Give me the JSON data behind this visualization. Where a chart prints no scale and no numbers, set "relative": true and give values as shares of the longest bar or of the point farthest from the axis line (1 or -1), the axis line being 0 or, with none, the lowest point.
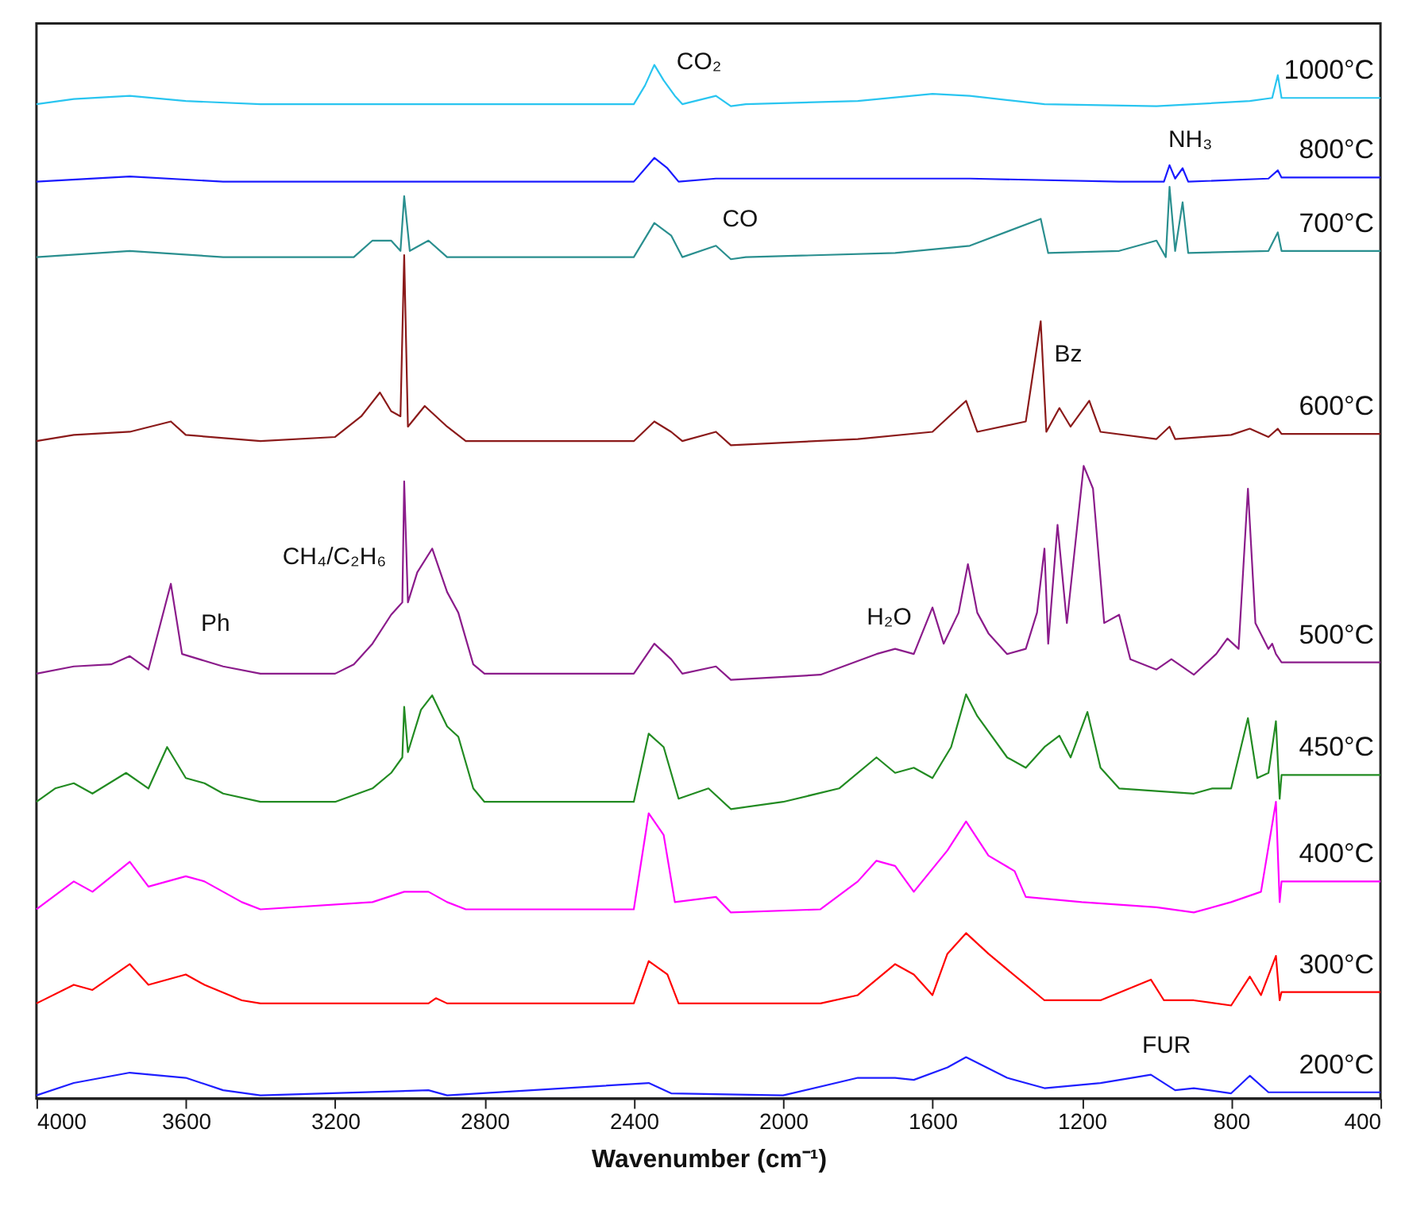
{
  "chart_data": {
    "type": "line",
    "relative": true,
    "xlabel": "Wavenumber (cm⁻¹)",
    "xlim": [
      4000,
      400
    ],
    "xticks": [
      4000,
      3600,
      3200,
      2800,
      2400,
      2000,
      1600,
      1200,
      800,
      400
    ],
    "tick_labels": "x",
    "grid": false,
    "legend": false,
    "series": [
      {
        "name": "1000°C",
        "color": "#29c5f0",
        "x": [
          4000,
          3900,
          3750,
          3600,
          3400,
          2400,
          2370,
          2345,
          2320,
          2290,
          2270,
          2180,
          2140,
          2100,
          1800,
          1600,
          1500,
          1300,
          1000,
          750,
          690,
          675,
          665,
          400
        ],
        "values": [
          0.962,
          0.967,
          0.97,
          0.965,
          0.962,
          0.962,
          0.98,
          1.0,
          0.985,
          0.97,
          0.962,
          0.97,
          0.96,
          0.962,
          0.965,
          0.972,
          0.97,
          0.962,
          0.96,
          0.965,
          0.968,
          0.99,
          0.968,
          0.968
        ]
      },
      {
        "name": "800°C",
        "color": "#1a1aff",
        "x": [
          4000,
          3750,
          3500,
          2400,
          2345,
          2310,
          2280,
          2180,
          1500,
          1100,
          980,
          965,
          950,
          930,
          915,
          700,
          675,
          665,
          400
        ],
        "values": [
          0.887,
          0.892,
          0.887,
          0.887,
          0.91,
          0.9,
          0.887,
          0.89,
          0.89,
          0.887,
          0.887,
          0.903,
          0.89,
          0.9,
          0.887,
          0.89,
          0.898,
          0.891,
          0.891
        ]
      },
      {
        "name": "700°C",
        "color": "#2a8f8f",
        "x": [
          4000,
          3750,
          3500,
          3150,
          3100,
          3050,
          3025,
          3015,
          3000,
          2950,
          2900,
          2400,
          2345,
          2300,
          2270,
          2180,
          2140,
          2100,
          1700,
          1500,
          1310,
          1290,
          1100,
          1000,
          975,
          965,
          950,
          930,
          915,
          700,
          675,
          665,
          400
        ],
        "values": [
          0.814,
          0.82,
          0.814,
          0.814,
          0.83,
          0.83,
          0.82,
          0.873,
          0.82,
          0.83,
          0.814,
          0.814,
          0.847,
          0.835,
          0.814,
          0.825,
          0.812,
          0.814,
          0.818,
          0.825,
          0.851,
          0.818,
          0.82,
          0.83,
          0.814,
          0.882,
          0.82,
          0.867,
          0.818,
          0.82,
          0.838,
          0.82,
          0.82
        ]
      },
      {
        "name": "600°C",
        "color": "#8b1a1a",
        "x": [
          4000,
          3900,
          3750,
          3640,
          3600,
          3400,
          3200,
          3130,
          3080,
          3050,
          3025,
          3015,
          3005,
          2960,
          2900,
          2850,
          2400,
          2345,
          2300,
          2270,
          2180,
          2140,
          1800,
          1600,
          1510,
          1480,
          1350,
          1310,
          1295,
          1260,
          1230,
          1180,
          1150,
          1000,
          965,
          950,
          800,
          750,
          700,
          675,
          665,
          400
        ],
        "values": [
          0.636,
          0.642,
          0.645,
          0.655,
          0.642,
          0.636,
          0.64,
          0.66,
          0.683,
          0.665,
          0.66,
          0.816,
          0.65,
          0.67,
          0.65,
          0.636,
          0.636,
          0.655,
          0.645,
          0.636,
          0.645,
          0.632,
          0.638,
          0.645,
          0.675,
          0.645,
          0.655,
          0.752,
          0.645,
          0.668,
          0.65,
          0.675,
          0.645,
          0.638,
          0.65,
          0.638,
          0.642,
          0.648,
          0.64,
          0.648,
          0.643,
          0.643
        ]
      },
      {
        "name": "500°C",
        "color": "#8b1c8b",
        "x": [
          4000,
          3900,
          3800,
          3750,
          3700,
          3640,
          3610,
          3500,
          3400,
          3200,
          3150,
          3100,
          3050,
          3020,
          3015,
          3005,
          2980,
          2940,
          2900,
          2870,
          2830,
          2800,
          2400,
          2345,
          2300,
          2270,
          2180,
          2140,
          1900,
          1750,
          1700,
          1650,
          1600,
          1570,
          1530,
          1505,
          1480,
          1450,
          1400,
          1350,
          1320,
          1300,
          1290,
          1265,
          1240,
          1195,
          1170,
          1140,
          1100,
          1070,
          1000,
          960,
          900,
          840,
          810,
          780,
          755,
          735,
          700,
          690,
          680,
          665,
          400
        ],
        "values": [
          0.411,
          0.418,
          0.42,
          0.428,
          0.415,
          0.498,
          0.43,
          0.418,
          0.411,
          0.411,
          0.42,
          0.44,
          0.468,
          0.48,
          0.597,
          0.48,
          0.509,
          0.532,
          0.49,
          0.47,
          0.42,
          0.411,
          0.411,
          0.44,
          0.425,
          0.411,
          0.418,
          0.405,
          0.41,
          0.43,
          0.435,
          0.43,
          0.475,
          0.44,
          0.47,
          0.517,
          0.47,
          0.45,
          0.43,
          0.435,
          0.47,
          0.532,
          0.44,
          0.555,
          0.46,
          0.612,
          0.59,
          0.46,
          0.468,
          0.425,
          0.415,
          0.425,
          0.41,
          0.43,
          0.445,
          0.435,
          0.59,
          0.46,
          0.435,
          0.44,
          0.43,
          0.422,
          0.422
        ]
      },
      {
        "name": "450°C",
        "color": "#228b22",
        "x": [
          4000,
          3950,
          3900,
          3850,
          3760,
          3700,
          3650,
          3600,
          3550,
          3500,
          3400,
          3200,
          3100,
          3050,
          3020,
          3015,
          3005,
          2970,
          2940,
          2900,
          2870,
          2830,
          2800,
          2400,
          2360,
          2320,
          2280,
          2200,
          2140,
          2000,
          1850,
          1750,
          1700,
          1650,
          1600,
          1550,
          1510,
          1480,
          1400,
          1350,
          1300,
          1260,
          1230,
          1185,
          1150,
          1100,
          900,
          850,
          800,
          755,
          730,
          700,
          680,
          670,
          665,
          400
        ],
        "values": [
          0.287,
          0.3,
          0.305,
          0.295,
          0.315,
          0.3,
          0.34,
          0.31,
          0.305,
          0.295,
          0.287,
          0.287,
          0.3,
          0.315,
          0.33,
          0.379,
          0.335,
          0.376,
          0.39,
          0.36,
          0.35,
          0.3,
          0.287,
          0.287,
          0.353,
          0.34,
          0.29,
          0.3,
          0.28,
          0.287,
          0.3,
          0.33,
          0.315,
          0.32,
          0.31,
          0.34,
          0.391,
          0.37,
          0.33,
          0.32,
          0.34,
          0.351,
          0.33,
          0.374,
          0.32,
          0.3,
          0.295,
          0.3,
          0.3,
          0.368,
          0.31,
          0.315,
          0.365,
          0.29,
          0.313,
          0.313
        ]
      },
      {
        "name": "400°C",
        "color": "#ff00ff",
        "x": [
          4000,
          3900,
          3850,
          3750,
          3700,
          3600,
          3550,
          3450,
          3400,
          3100,
          3015,
          2950,
          2900,
          2850,
          2400,
          2360,
          2320,
          2290,
          2180,
          2140,
          1900,
          1800,
          1750,
          1700,
          1650,
          1560,
          1510,
          1450,
          1380,
          1350,
          1200,
          1000,
          900,
          800,
          720,
          680,
          670,
          665,
          400
        ],
        "values": [
          0.183,
          0.21,
          0.2,
          0.229,
          0.205,
          0.215,
          0.21,
          0.19,
          0.183,
          0.19,
          0.2,
          0.2,
          0.19,
          0.183,
          0.183,
          0.276,
          0.255,
          0.19,
          0.195,
          0.18,
          0.183,
          0.21,
          0.23,
          0.225,
          0.2,
          0.24,
          0.268,
          0.235,
          0.22,
          0.195,
          0.19,
          0.185,
          0.18,
          0.19,
          0.2,
          0.287,
          0.19,
          0.21,
          0.21
        ]
      },
      {
        "name": "300°C",
        "color": "#ff0000",
        "x": [
          4000,
          3900,
          3850,
          3750,
          3700,
          3600,
          3550,
          3450,
          3400,
          2950,
          2930,
          2900,
          2400,
          2360,
          2310,
          2280,
          1900,
          1800,
          1700,
          1650,
          1600,
          1560,
          1510,
          1450,
          1350,
          1300,
          1150,
          1015,
          980,
          900,
          800,
          750,
          720,
          680,
          670,
          665,
          400
        ],
        "values": [
          0.092,
          0.11,
          0.105,
          0.13,
          0.11,
          0.12,
          0.11,
          0.095,
          0.092,
          0.092,
          0.097,
          0.092,
          0.092,
          0.133,
          0.12,
          0.092,
          0.092,
          0.1,
          0.13,
          0.12,
          0.1,
          0.14,
          0.16,
          0.14,
          0.11,
          0.095,
          0.095,
          0.115,
          0.095,
          0.095,
          0.09,
          0.118,
          0.1,
          0.138,
          0.095,
          0.103,
          0.103
        ]
      },
      {
        "name": "200°C",
        "color": "#1f1fff",
        "x": [
          4000,
          3900,
          3750,
          3600,
          3500,
          3400,
          2950,
          2900,
          2360,
          2300,
          2000,
          1800,
          1700,
          1650,
          1560,
          1510,
          1400,
          1300,
          1150,
          1015,
          950,
          900,
          800,
          750,
          700,
          665,
          400
        ],
        "values": [
          0.003,
          0.015,
          0.025,
          0.02,
          0.008,
          0.003,
          0.008,
          0.003,
          0.015,
          0.005,
          0.003,
          0.02,
          0.02,
          0.018,
          0.03,
          0.04,
          0.02,
          0.01,
          0.015,
          0.023,
          0.008,
          0.01,
          0.005,
          0.022,
          0.006,
          0.006,
          0.006
        ]
      }
    ],
    "annotations": [
      "CO₂",
      "CO",
      "NH₃",
      "Bz",
      "Ph",
      "CH₄/C₂H₆",
      "H₂O",
      "FUR"
    ]
  }
}
